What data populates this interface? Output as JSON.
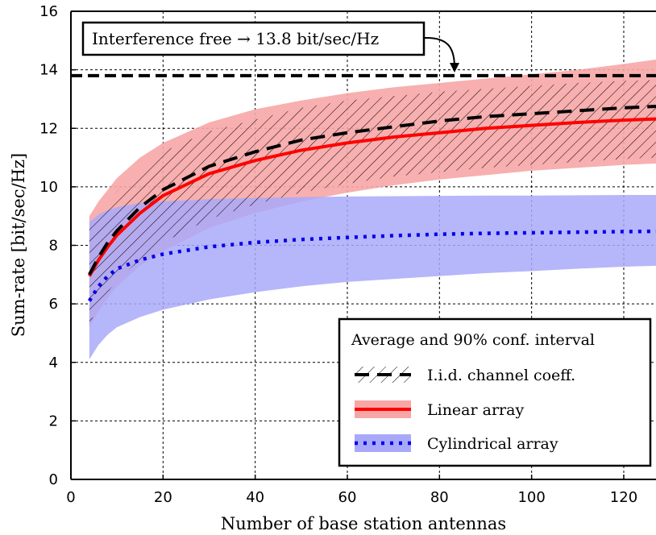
{
  "chart_data": {
    "type": "line",
    "xlabel": "Number of base station antennas",
    "ylabel": "Sum-rate [bit/sec/Hz]",
    "xlim": [
      0,
      127
    ],
    "ylim": [
      0,
      16
    ],
    "x_ticks": [
      0,
      20,
      40,
      60,
      80,
      100,
      120
    ],
    "y_ticks": [
      0,
      2,
      4,
      6,
      8,
      10,
      12,
      14,
      16
    ],
    "grid": true,
    "legend": {
      "title": "Average and 90% conf. interval",
      "placement": "bottom-right"
    },
    "annotation": {
      "text": "Interference free → 13.8 bit/sec/Hz",
      "points_to": {
        "x": 84,
        "y": 13.8
      }
    },
    "reference_line": {
      "y": 13.8,
      "style": "dashed",
      "color": "#000000"
    },
    "series": [
      {
        "name": "I.i.d. channel coeff.",
        "style": "dashed",
        "color": "#000000",
        "band_style": "hatched",
        "x": [
          4,
          6,
          8,
          10,
          15,
          20,
          30,
          40,
          50,
          60,
          70,
          80,
          90,
          100,
          110,
          120,
          127
        ],
        "y": [
          7.0,
          7.6,
          8.1,
          8.5,
          9.3,
          9.9,
          10.7,
          11.2,
          11.6,
          11.85,
          12.05,
          12.25,
          12.4,
          12.5,
          12.6,
          12.7,
          12.75
        ],
        "lower": [
          5.3,
          5.9,
          6.4,
          6.8,
          7.5,
          8.1,
          8.9,
          9.4,
          9.8,
          10.1,
          10.35,
          10.5,
          10.65,
          10.75,
          10.85,
          10.95,
          11.0
        ],
        "upper": [
          8.6,
          9.1,
          9.5,
          9.85,
          10.6,
          11.2,
          11.9,
          12.3,
          12.7,
          12.95,
          13.1,
          13.25,
          13.35,
          13.45,
          13.55,
          13.62,
          13.65
        ]
      },
      {
        "name": "Linear array",
        "style": "solid",
        "color": "#ff0000",
        "band_color": "#f7a6a6",
        "x": [
          4,
          6,
          8,
          10,
          15,
          20,
          30,
          40,
          50,
          60,
          70,
          80,
          90,
          100,
          110,
          120,
          127
        ],
        "y": [
          6.95,
          7.5,
          7.95,
          8.35,
          9.1,
          9.7,
          10.45,
          10.9,
          11.25,
          11.5,
          11.7,
          11.85,
          12.0,
          12.1,
          12.2,
          12.28,
          12.32
        ],
        "lower": [
          5.2,
          5.75,
          6.2,
          6.6,
          7.3,
          7.8,
          8.6,
          9.1,
          9.5,
          9.8,
          10.05,
          10.25,
          10.4,
          10.55,
          10.65,
          10.75,
          10.8
        ],
        "upper": [
          9.0,
          9.5,
          9.9,
          10.3,
          11.0,
          11.5,
          12.2,
          12.65,
          12.95,
          13.2,
          13.4,
          13.55,
          13.7,
          13.85,
          14.0,
          14.2,
          14.35
        ]
      },
      {
        "name": "Cylindrical array",
        "style": "dotted",
        "color": "#0000ee",
        "band_color": "#a9a9f9",
        "x": [
          4,
          6,
          8,
          10,
          15,
          20,
          30,
          40,
          50,
          60,
          70,
          80,
          90,
          100,
          110,
          120,
          127
        ],
        "y": [
          6.1,
          6.6,
          6.95,
          7.2,
          7.5,
          7.7,
          7.95,
          8.1,
          8.2,
          8.27,
          8.33,
          8.38,
          8.41,
          8.43,
          8.45,
          8.47,
          8.48
        ],
        "lower": [
          4.1,
          4.6,
          4.95,
          5.2,
          5.55,
          5.8,
          6.15,
          6.4,
          6.6,
          6.75,
          6.85,
          6.95,
          7.05,
          7.12,
          7.2,
          7.27,
          7.3
        ],
        "upper": [
          8.8,
          9.05,
          9.2,
          9.3,
          9.45,
          9.5,
          9.58,
          9.62,
          9.65,
          9.67,
          9.68,
          9.69,
          9.7,
          9.7,
          9.71,
          9.72,
          9.72
        ]
      }
    ]
  }
}
